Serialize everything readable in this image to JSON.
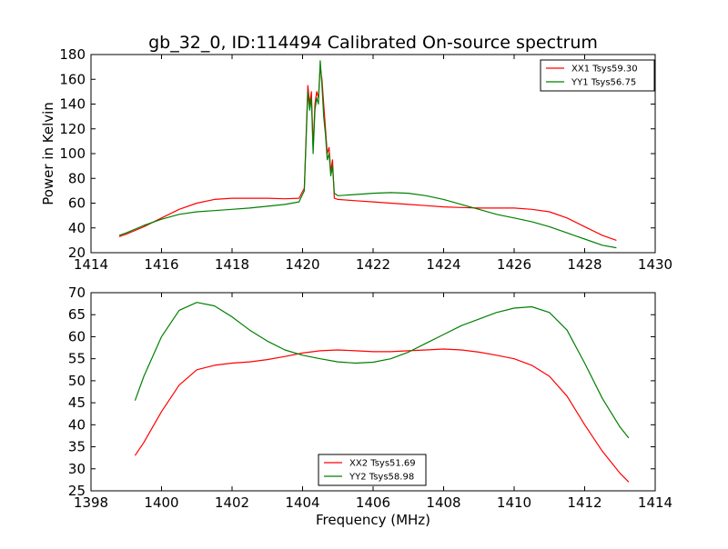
{
  "chart_data": [
    {
      "type": "line",
      "title": "gb_32_0, ID:114494 Calibrated On-source spectrum",
      "xlabel": "",
      "ylabel": "Power in Kelvin",
      "xlim": [
        1414,
        1430
      ],
      "ylim": [
        20,
        180
      ],
      "xticks": [
        "1414",
        "1416",
        "1418",
        "1420",
        "1422",
        "1424",
        "1426",
        "1428",
        "1430"
      ],
      "yticks": [
        "20",
        "40",
        "60",
        "80",
        "100",
        "120",
        "140",
        "160",
        "180"
      ],
      "legend_position": "top-right",
      "series": [
        {
          "name": "XX1 Tsys59.30",
          "color": "#ff0000",
          "x": [
            1414.8,
            1415.0,
            1415.5,
            1416.0,
            1416.5,
            1417.0,
            1417.5,
            1418.0,
            1418.5,
            1419.0,
            1419.5,
            1419.9,
            1420.05,
            1420.15,
            1420.2,
            1420.25,
            1420.3,
            1420.35,
            1420.4,
            1420.45,
            1420.5,
            1420.55,
            1420.6,
            1420.65,
            1420.7,
            1420.75,
            1420.8,
            1420.85,
            1420.9,
            1421.0,
            1421.5,
            1422.0,
            1422.5,
            1423.0,
            1423.5,
            1424.0,
            1424.5,
            1425.0,
            1425.5,
            1426.0,
            1426.5,
            1427.0,
            1427.5,
            1428.0,
            1428.5,
            1428.9
          ],
          "values": [
            33,
            35,
            41,
            48,
            55,
            60,
            63,
            64,
            64,
            64,
            63.5,
            64,
            72,
            155,
            140,
            150,
            105,
            140,
            150,
            145,
            170,
            160,
            140,
            120,
            100,
            105,
            85,
            95,
            64,
            63,
            62,
            61,
            60,
            59,
            58,
            57,
            56.5,
            56,
            56,
            56,
            55,
            53,
            48,
            41,
            34,
            30
          ]
        },
        {
          "name": "YY1 Tsys56.75",
          "color": "#008000",
          "x": [
            1414.8,
            1415.0,
            1415.5,
            1416.0,
            1416.5,
            1417.0,
            1417.5,
            1418.0,
            1418.5,
            1419.0,
            1419.5,
            1419.9,
            1420.05,
            1420.15,
            1420.2,
            1420.25,
            1420.3,
            1420.35,
            1420.4,
            1420.45,
            1420.5,
            1420.55,
            1420.6,
            1420.65,
            1420.7,
            1420.75,
            1420.8,
            1420.85,
            1420.9,
            1421.0,
            1421.5,
            1422.0,
            1422.5,
            1423.0,
            1423.5,
            1424.0,
            1424.5,
            1425.0,
            1425.5,
            1426.0,
            1426.5,
            1427.0,
            1427.5,
            1428.0,
            1428.5,
            1428.9
          ],
          "values": [
            34,
            36,
            42,
            47,
            51,
            53,
            54,
            55,
            56,
            57.5,
            59,
            61,
            70,
            150,
            135,
            145,
            100,
            135,
            145,
            140,
            175,
            155,
            130,
            115,
            95,
            100,
            82,
            90,
            68,
            66,
            67,
            68,
            68.5,
            68,
            66,
            63,
            59,
            55,
            51,
            48,
            45,
            41,
            36,
            31,
            26,
            24
          ]
        }
      ]
    },
    {
      "type": "line",
      "title": "",
      "xlabel": "Frequency (MHz)",
      "ylabel": "",
      "xlim": [
        1398,
        1414
      ],
      "ylim": [
        25,
        70
      ],
      "xticks": [
        "1398",
        "1400",
        "1402",
        "1404",
        "1406",
        "1408",
        "1410",
        "1412",
        "1414"
      ],
      "yticks": [
        "25",
        "30",
        "35",
        "40",
        "45",
        "50",
        "55",
        "60",
        "65",
        "70"
      ],
      "legend_position": "bottom-center",
      "series": [
        {
          "name": "XX2 Tsys51.69",
          "color": "#ff0000",
          "x": [
            1399.25,
            1399.5,
            1400.0,
            1400.5,
            1401.0,
            1401.5,
            1402.0,
            1402.5,
            1403.0,
            1403.5,
            1404.0,
            1404.5,
            1405.0,
            1405.5,
            1406.0,
            1406.5,
            1407.0,
            1407.5,
            1408.0,
            1408.5,
            1409.0,
            1409.5,
            1410.0,
            1410.5,
            1411.0,
            1411.5,
            1412.0,
            1412.5,
            1413.0,
            1413.25
          ],
          "values": [
            33,
            36,
            43,
            49,
            52.5,
            53.5,
            54,
            54.3,
            54.8,
            55.5,
            56.3,
            56.8,
            57,
            56.8,
            56.6,
            56.6,
            56.8,
            57,
            57.2,
            57,
            56.5,
            55.8,
            55,
            53.5,
            51,
            46.5,
            40,
            34,
            29,
            27
          ]
        },
        {
          "name": "YY2 Tsys58.98",
          "color": "#008000",
          "x": [
            1399.25,
            1399.5,
            1400.0,
            1400.5,
            1401.0,
            1401.5,
            1402.0,
            1402.5,
            1403.0,
            1403.5,
            1404.0,
            1404.5,
            1405.0,
            1405.5,
            1406.0,
            1406.5,
            1407.0,
            1407.5,
            1408.0,
            1408.5,
            1409.0,
            1409.5,
            1410.0,
            1410.5,
            1411.0,
            1411.5,
            1412.0,
            1412.5,
            1413.0,
            1413.25
          ],
          "values": [
            45.5,
            51,
            60,
            66,
            67.8,
            67,
            64.5,
            61.5,
            59,
            57,
            55.8,
            55,
            54.3,
            54,
            54.2,
            55,
            56.5,
            58.5,
            60.5,
            62.5,
            64,
            65.5,
            66.5,
            66.8,
            65.5,
            61.5,
            54,
            46,
            39.5,
            37
          ]
        }
      ]
    }
  ]
}
